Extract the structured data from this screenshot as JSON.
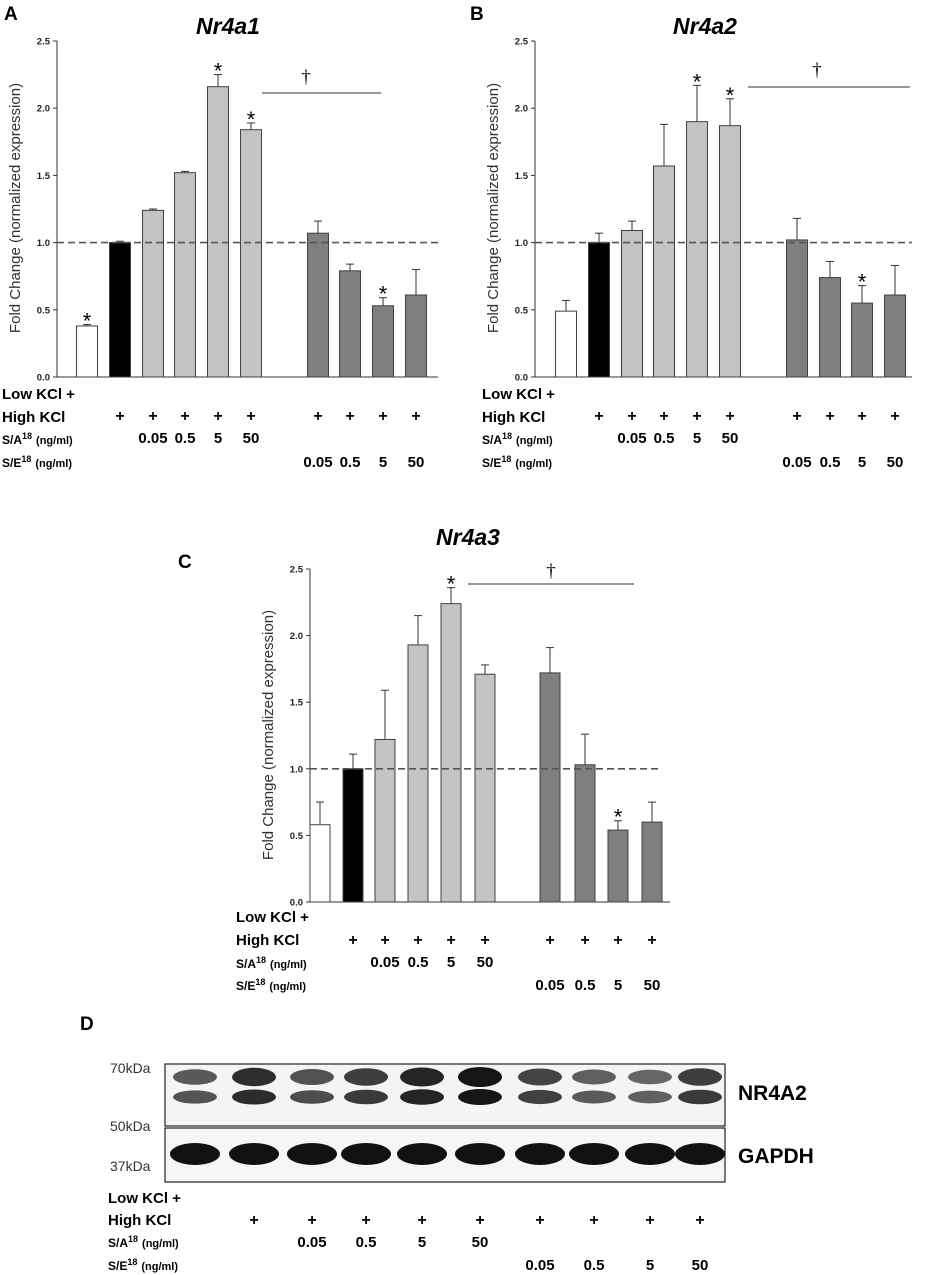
{
  "chart_data": [
    {
      "panel": "A",
      "type": "bar",
      "title": "Nr4a1",
      "ylabel": "Fold Change  (normalized  expression)",
      "ylim": [
        0,
        2.5
      ],
      "yticks": [
        "0.0",
        "0.5",
        "1.0",
        "1.5",
        "2.0",
        "2.5"
      ],
      "reference_line": 1.0,
      "dagger": "†",
      "values": [
        0.38,
        1.0,
        1.24,
        1.52,
        2.16,
        1.84,
        1.07,
        0.79,
        0.53,
        0.61
      ],
      "errors": [
        0.01,
        0.01,
        0.01,
        0.01,
        0.09,
        0.05,
        0.09,
        0.05,
        0.06,
        0.19
      ],
      "groups": [
        "white",
        "black",
        "light",
        "light",
        "light",
        "light",
        "dark",
        "dark",
        "dark",
        "dark"
      ],
      "significant": [
        true,
        false,
        false,
        false,
        true,
        true,
        false,
        false,
        true,
        false
      ]
    },
    {
      "panel": "B",
      "type": "bar",
      "title": "Nr4a2",
      "ylabel": "Fold Change  (normalized  expression)",
      "ylim": [
        0,
        2.5
      ],
      "yticks": [
        "0.0",
        "0.5",
        "1.0",
        "1.5",
        "2.0",
        "2.5"
      ],
      "reference_line": 1.0,
      "dagger": "†",
      "values": [
        0.49,
        1.0,
        1.09,
        1.57,
        1.9,
        1.87,
        1.02,
        0.74,
        0.55,
        0.61
      ],
      "errors": [
        0.08,
        0.07,
        0.07,
        0.31,
        0.27,
        0.2,
        0.16,
        0.12,
        0.13,
        0.22
      ],
      "groups": [
        "white",
        "black",
        "light",
        "light",
        "light",
        "light",
        "dark",
        "dark",
        "dark",
        "dark"
      ],
      "significant": [
        false,
        false,
        false,
        false,
        true,
        true,
        false,
        false,
        true,
        false
      ]
    },
    {
      "panel": "C",
      "type": "bar",
      "title": "Nr4a3",
      "ylabel": "Fold Change (normalized expression)",
      "ylim": [
        0,
        2.5
      ],
      "yticks": [
        "0.0",
        "0.5",
        "1.0",
        "1.5",
        "2.0",
        "2.5"
      ],
      "reference_line": 1.0,
      "dagger": "†",
      "values": [
        0.58,
        1.0,
        1.22,
        1.93,
        2.24,
        1.71,
        1.72,
        1.03,
        0.54,
        0.6
      ],
      "errors": [
        0.17,
        0.11,
        0.37,
        0.22,
        0.12,
        0.07,
        0.19,
        0.23,
        0.07,
        0.15
      ],
      "groups": [
        "white",
        "black",
        "light",
        "light",
        "light",
        "light",
        "dark",
        "dark",
        "dark",
        "dark"
      ],
      "significant": [
        false,
        false,
        false,
        false,
        true,
        false,
        false,
        false,
        true,
        false
      ]
    }
  ],
  "colors": {
    "white": "#ffffff",
    "black": "#000000",
    "light": "#c4c4c4",
    "dark": "#7f7f7f",
    "edge": "#404040",
    "refline": "#555555"
  },
  "panels": {
    "A": "A",
    "B": "B",
    "C": "C",
    "D": "D"
  },
  "conditions": {
    "low_kcl": "Low KCl +",
    "high_kcl": "High KCl",
    "sa_label": "S/A",
    "se_label": "S/E",
    "superscript": "18",
    "units": "(ng/ml)",
    "plus": "+",
    "star": "*",
    "high_kcl_marks": [
      "",
      "+",
      "+",
      "+",
      "+",
      "+",
      "+",
      "+",
      "+",
      "+"
    ],
    "sa_doses": [
      "",
      "",
      "0.05",
      "0.5",
      "5",
      "50",
      "",
      "",
      "",
      ""
    ],
    "se_doses": [
      "",
      "",
      "",
      "",
      "",
      "",
      "0.05",
      "0.5",
      "5",
      "50"
    ]
  },
  "blot": {
    "target": "NR4A2",
    "loading_control": "GAPDH",
    "markers": [
      "70kDa",
      "50kDa",
      "37kDa"
    ],
    "target_intensity": [
      0.55,
      0.85,
      0.6,
      0.75,
      0.9,
      1.0,
      0.7,
      0.5,
      0.45,
      0.75
    ]
  }
}
